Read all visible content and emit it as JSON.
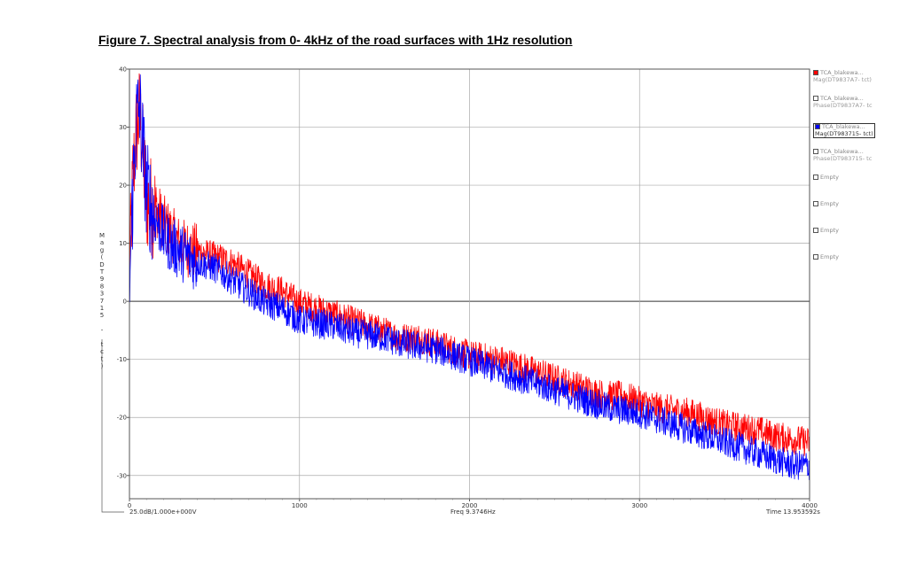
{
  "figure": {
    "title": "Figure 7. Spectral analysis from 0- 4kHz of the road surfaces with 1Hz resolution"
  },
  "chart_data": {
    "type": "line",
    "title": "",
    "xlabel": "",
    "ylabel": "Mag(DT983715 - tct)",
    "xlim": [
      0,
      4000
    ],
    "ylim": [
      -34,
      40
    ],
    "x_ticks": [
      "0",
      "1000",
      "2000",
      "3000",
      "4000"
    ],
    "y_ticks": [
      "40",
      "30",
      "20",
      "10",
      "0",
      "-10",
      "-20",
      "-30"
    ],
    "grid": true,
    "legend_position": "right",
    "series": [
      {
        "name": "TCA_blakewa... Mag(DT9837A7- tct)",
        "color": "#ff0000",
        "x": [
          0,
          20,
          40,
          60,
          80,
          100,
          150,
          200,
          250,
          300,
          400,
          500,
          600,
          700,
          800,
          900,
          1000,
          1100,
          1200,
          1300,
          1400,
          1500,
          1600,
          1700,
          1800,
          1900,
          2000,
          2100,
          2200,
          2300,
          2400,
          2500,
          2600,
          2700,
          2800,
          2900,
          3000,
          3100,
          3200,
          3300,
          3400,
          3500,
          3600,
          3700,
          3800,
          3900,
          4000
        ],
        "y": [
          5,
          22,
          30,
          33,
          26,
          18,
          17,
          14,
          12,
          10,
          9,
          8,
          7,
          5,
          3,
          2,
          0,
          -1,
          -2,
          -3,
          -4,
          -5,
          -6,
          -6,
          -7,
          -8,
          -9,
          -9.5,
          -10,
          -11,
          -12,
          -13,
          -14,
          -15,
          -16,
          -16,
          -17,
          -18,
          -18.5,
          -19,
          -20,
          -21,
          -21.5,
          -22,
          -23,
          -23.5,
          -24
        ]
      },
      {
        "name": "TCA_blakewa... Mag(DT983715- tct)",
        "color": "#0000ff",
        "x": [
          0,
          20,
          40,
          60,
          80,
          100,
          150,
          200,
          250,
          300,
          400,
          500,
          600,
          700,
          800,
          900,
          1000,
          1100,
          1200,
          1300,
          1400,
          1500,
          1600,
          1700,
          1800,
          1900,
          2000,
          2100,
          2200,
          2300,
          2400,
          2500,
          2600,
          2700,
          2800,
          2900,
          3000,
          3100,
          3200,
          3300,
          3400,
          3500,
          3600,
          3700,
          3800,
          3900,
          4000
        ],
        "y": [
          3,
          20,
          32,
          34,
          27,
          20,
          15,
          12,
          10,
          9,
          7,
          6,
          4,
          2,
          0,
          -1,
          -3,
          -3.5,
          -4,
          -5,
          -5.5,
          -6,
          -7,
          -7.5,
          -8,
          -9,
          -10,
          -11,
          -12,
          -13,
          -14,
          -15,
          -16,
          -17,
          -18,
          -18.5,
          -19,
          -20,
          -21,
          -22,
          -23,
          -24,
          -25,
          -26,
          -27,
          -28,
          -28
        ]
      }
    ]
  },
  "legend": [
    {
      "line1": "TCA_blakewa...",
      "line2": "Mag(DT9837A7- tct)",
      "color": "#ff0000",
      "checked": true,
      "active": false
    },
    {
      "line1": "TCA_blakewa...",
      "line2": "Phase(DT9837A7- tc",
      "color": "#ffffff",
      "checked": false,
      "active": false
    },
    {
      "line1": "TCA_blakewa...",
      "line2": "Mag(DT983715- tct)",
      "color": "#0000ff",
      "checked": true,
      "active": true
    },
    {
      "line1": "TCA_blakewa...",
      "line2": "Phase(DT983715- tc",
      "color": "#ffffff",
      "checked": false,
      "active": false
    },
    {
      "line1": "Empty",
      "line2": "",
      "color": "#ffffff",
      "checked": false,
      "active": false
    },
    {
      "line1": "Empty",
      "line2": "",
      "color": "#ffffff",
      "checked": false,
      "active": false
    },
    {
      "line1": "Empty",
      "line2": "",
      "color": "#ffffff",
      "checked": false,
      "active": false
    },
    {
      "line1": "Empty",
      "line2": "",
      "color": "#ffffff",
      "checked": false,
      "active": false
    }
  ],
  "footer": {
    "scale": "25.0dB/1.000e+000V",
    "freq": "Freq 9.3746Hz",
    "time": "Time 13.953592s"
  }
}
